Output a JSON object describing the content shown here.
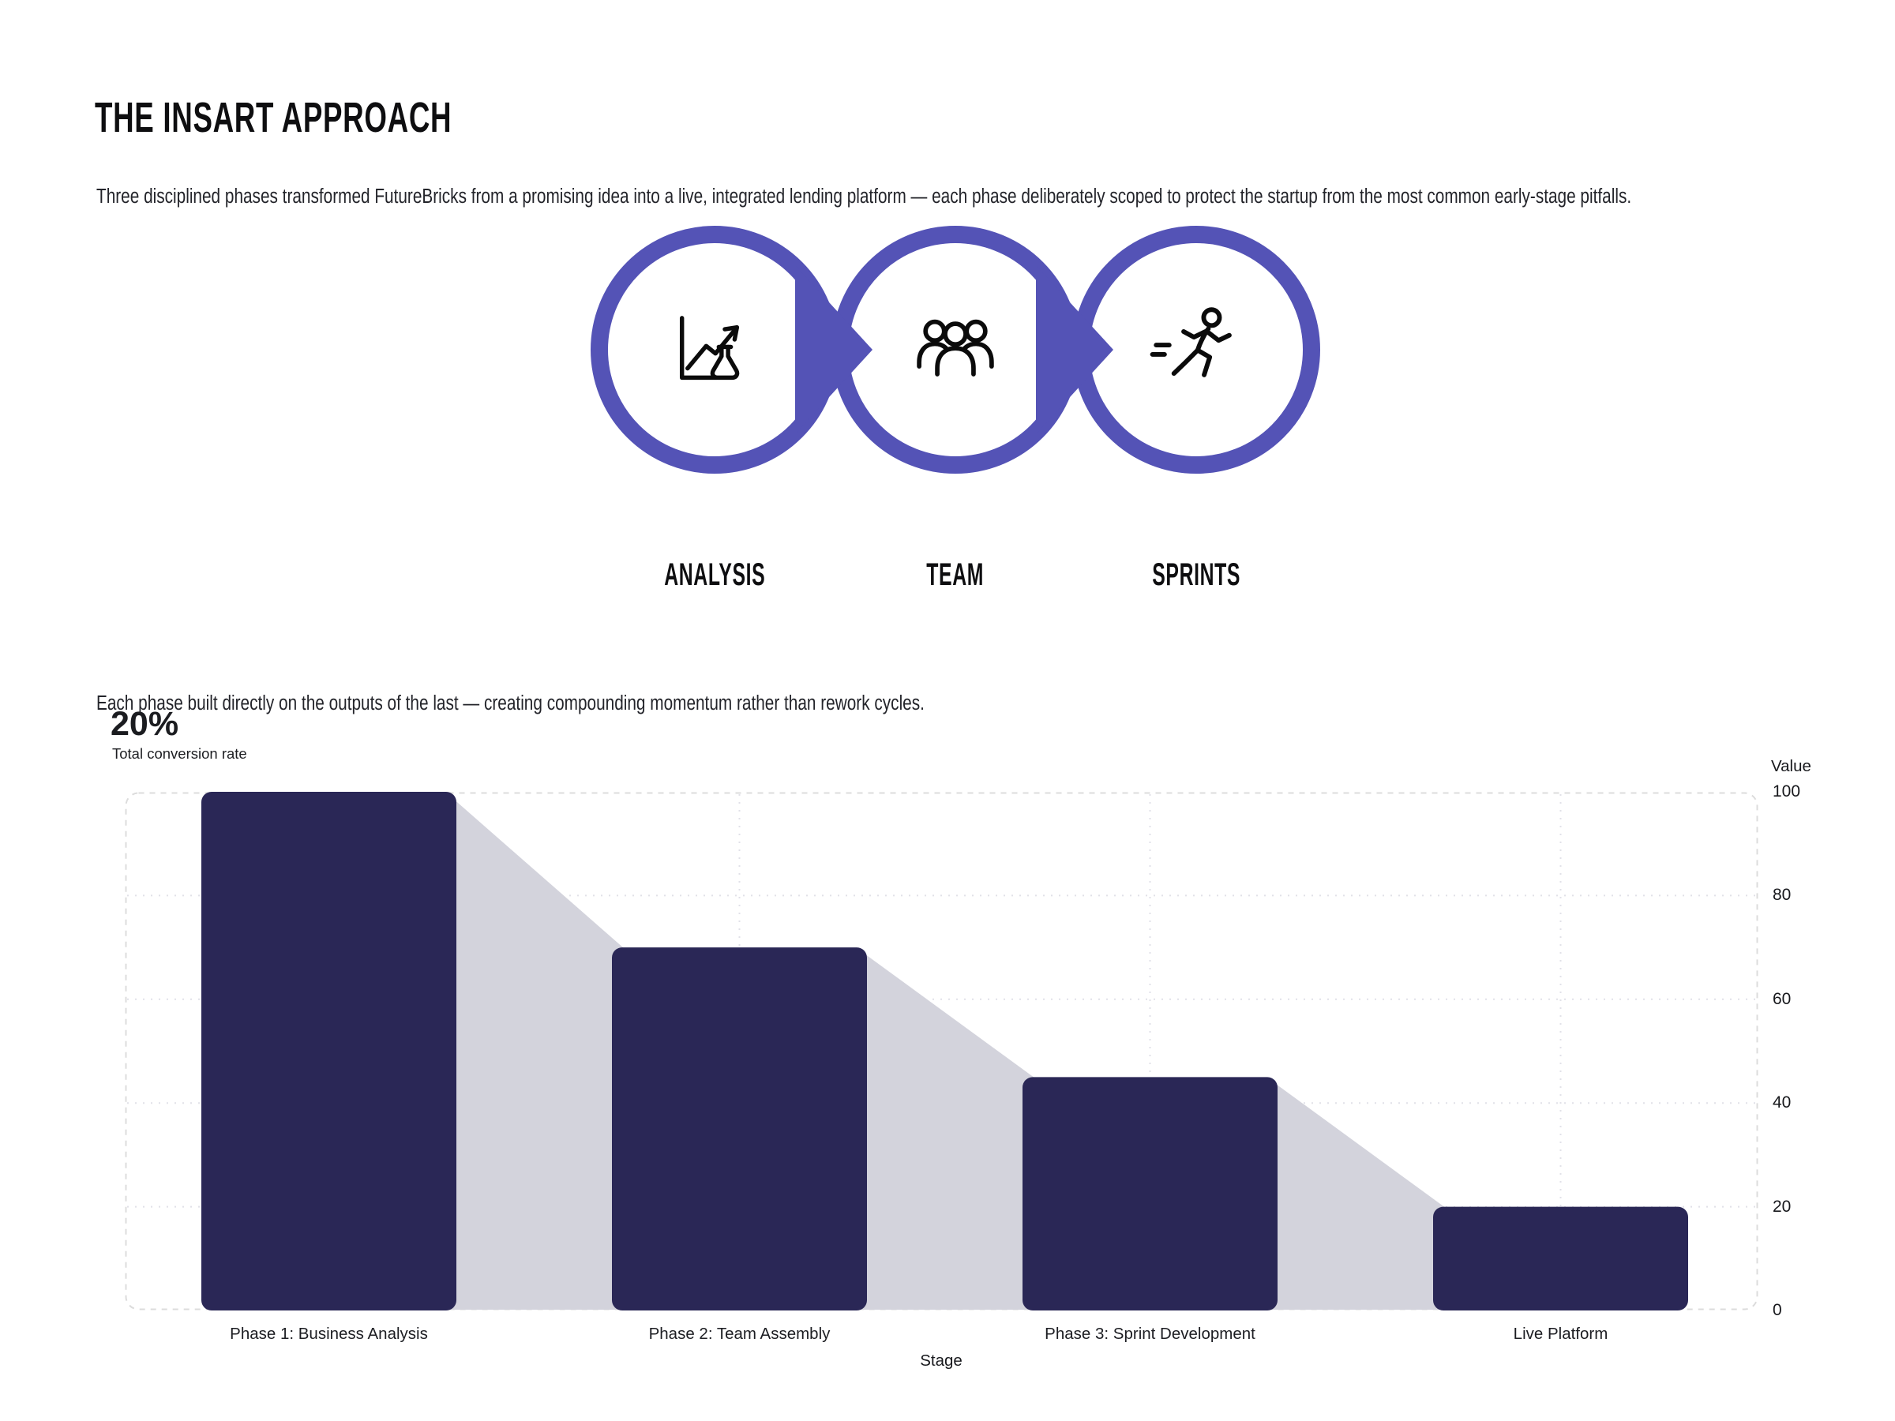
{
  "page": {
    "title": "THE INSART APPROACH",
    "intro": "Three disciplined phases transformed FutureBricks from a promising idea into a live, integrated lending platform — each phase deliberately scoped to protect the startup from the most common early-stage pitfalls.",
    "bridge": "Each phase built directly on the outputs of the last — creating compounding momentum rather than rework cycles."
  },
  "process": {
    "ring_color": "#5453b6",
    "steps": [
      {
        "label": "ANALYSIS",
        "icon": "chart-flask-icon"
      },
      {
        "label": "TEAM",
        "icon": "team-icon"
      },
      {
        "label": "SPRINTS",
        "icon": "runner-icon"
      }
    ]
  },
  "funnel_header": {
    "value": "20%",
    "label": "Total conversion rate"
  },
  "chart_data": {
    "type": "bar",
    "variant": "funnel",
    "title": "",
    "categories": [
      "Phase 1: Business Analysis",
      "Phase 2: Team Assembly",
      "Phase 3: Sprint Development",
      "Live Platform"
    ],
    "values": [
      100,
      70,
      45,
      20
    ],
    "xlabel": "Stage",
    "ylabel": "Value",
    "ylim": [
      0,
      100
    ],
    "yticks": [
      100,
      80,
      60,
      40,
      20,
      0
    ],
    "grid": true,
    "legend": "none",
    "bar_color": "#2a2756",
    "connector_color": "#d3d3dc",
    "grid_color": "#e1e1e8",
    "border_color": "#dcdcdc"
  }
}
